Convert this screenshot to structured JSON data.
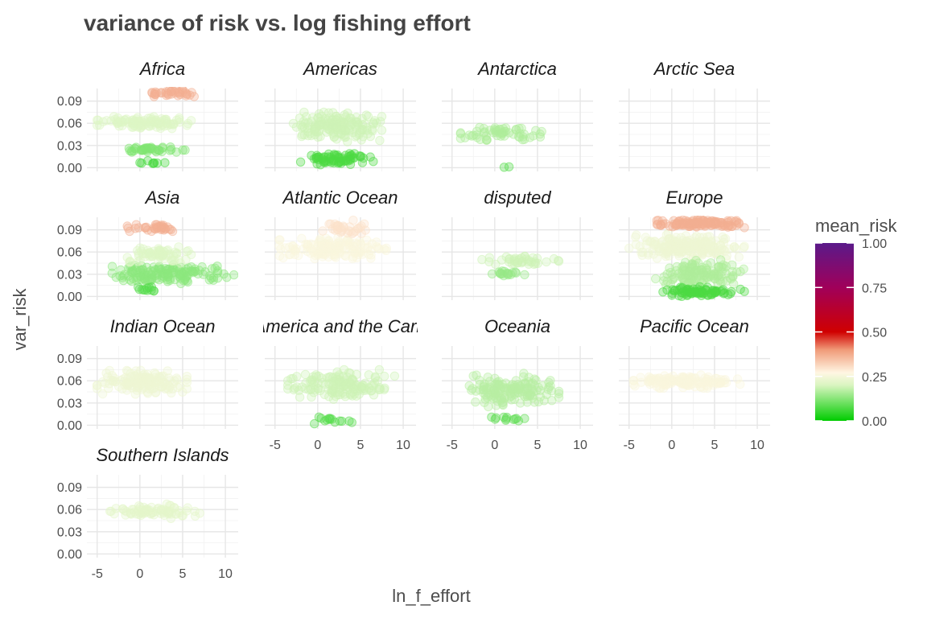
{
  "chart_data": {
    "type": "scatter",
    "title": "variance of risk vs. log fishing effort",
    "xlabel": "ln_f_effort",
    "ylabel": "var_risk",
    "xlim": [
      -6.2,
      11.5
    ],
    "ylim": [
      -0.005,
      0.107
    ],
    "x_ticks": [
      -5,
      0,
      5,
      10
    ],
    "y_ticks": [
      0.0,
      0.03,
      0.06,
      0.09
    ],
    "x_tick_labels": [
      "-5",
      "0",
      "5",
      "10"
    ],
    "y_tick_labels": [
      "0.00",
      "0.03",
      "0.06",
      "0.09"
    ],
    "grid": true,
    "legend": {
      "title": "mean_risk",
      "position": "right",
      "range": [
        0,
        1
      ],
      "breaks": [
        0.0,
        0.25,
        0.5,
        0.75,
        1.0
      ],
      "break_labels": [
        "0.00",
        "0.25",
        "0.50",
        "0.75",
        "1.00"
      ],
      "colors": [
        {
          "at": 0.0,
          "color": "#00CC00"
        },
        {
          "at": 0.2,
          "color": "#D9F5C0"
        },
        {
          "at": 0.27,
          "color": "#FFF6E3"
        },
        {
          "at": 0.4,
          "color": "#F09A78"
        },
        {
          "at": 0.5,
          "color": "#D00000"
        },
        {
          "at": 0.75,
          "color": "#A0005A"
        },
        {
          "at": 1.0,
          "color": "#5A1A8A"
        }
      ]
    },
    "facets": [
      {
        "name": "Africa",
        "clusters": [
          {
            "x": [
              -5,
              6
            ],
            "y": [
              0.053,
              0.069
            ],
            "risk": 0.21,
            "n": 110
          },
          {
            "x": [
              -0.3,
              7.5
            ],
            "y": [
              0.096,
              0.106
            ],
            "risk": 0.37,
            "n": 38
          },
          {
            "x": [
              -2,
              5.5
            ],
            "y": [
              0.02,
              0.028
            ],
            "risk": 0.12,
            "n": 40
          },
          {
            "x": [
              0,
              4
            ],
            "y": [
              0.003,
              0.01
            ],
            "risk": 0.06,
            "n": 8
          }
        ]
      },
      {
        "name": "Americas",
        "clusters": [
          {
            "x": [
              -3.5,
              7.5
            ],
            "y": [
              0.035,
              0.075
            ],
            "risk": 0.19,
            "n": 170
          },
          {
            "x": [
              -2,
              6.5
            ],
            "y": [
              0.004,
              0.02
            ],
            "risk": 0.07,
            "n": 70
          }
        ]
      },
      {
        "name": "Antarctica",
        "clusters": [
          {
            "x": [
              -4,
              5.5
            ],
            "y": [
              0.035,
              0.058
            ],
            "risk": 0.16,
            "n": 60
          },
          {
            "x": [
              0,
              2.5
            ],
            "y": [
              0.0,
              0.002
            ],
            "risk": 0.08,
            "n": 2
          }
        ]
      },
      {
        "name": "Arctic Sea",
        "clusters": []
      },
      {
        "name": "Asia",
        "clusters": [
          {
            "x": [
              -4,
              11
            ],
            "y": [
              0.015,
              0.045
            ],
            "risk": 0.13,
            "n": 150
          },
          {
            "x": [
              -2,
              6
            ],
            "y": [
              0.045,
              0.07
            ],
            "risk": 0.21,
            "n": 70
          },
          {
            "x": [
              -2,
              5.5
            ],
            "y": [
              0.088,
              0.097
            ],
            "risk": 0.37,
            "n": 35
          },
          {
            "x": [
              -1,
              3.5
            ],
            "y": [
              0.005,
              0.015
            ],
            "risk": 0.08,
            "n": 12
          }
        ]
      },
      {
        "name": "Atlantic Ocean",
        "clusters": [
          {
            "x": [
              -4.5,
              8.5
            ],
            "y": [
              0.05,
              0.08
            ],
            "risk": 0.26,
            "n": 150
          },
          {
            "x": [
              -0.5,
              6
            ],
            "y": [
              0.08,
              0.103
            ],
            "risk": 0.3,
            "n": 35
          }
        ]
      },
      {
        "name": "disputed",
        "clusters": [
          {
            "x": [
              -1.5,
              7.5
            ],
            "y": [
              0.042,
              0.055
            ],
            "risk": 0.19,
            "n": 40
          },
          {
            "x": [
              -1.5,
              3.5
            ],
            "y": [
              0.027,
              0.035
            ],
            "risk": 0.14,
            "n": 18
          }
        ]
      },
      {
        "name": "Europe",
        "clusters": [
          {
            "x": [
              -5,
              8.5
            ],
            "y": [
              0.05,
              0.085
            ],
            "risk": 0.24,
            "n": 190
          },
          {
            "x": [
              -2,
              8.5
            ],
            "y": [
              0.013,
              0.05
            ],
            "risk": 0.16,
            "n": 130
          },
          {
            "x": [
              -2,
              8.5
            ],
            "y": [
              0.0,
              0.013
            ],
            "risk": 0.07,
            "n": 80
          },
          {
            "x": [
              -2,
              8.5
            ],
            "y": [
              0.093,
              0.105
            ],
            "risk": 0.37,
            "n": 130
          }
        ]
      },
      {
        "name": "Indian Ocean",
        "clusters": [
          {
            "x": [
              -5,
              5.5
            ],
            "y": [
              0.042,
              0.074
            ],
            "risk": 0.24,
            "n": 150
          }
        ]
      },
      {
        "name": "Latin America and the Caribbean",
        "clusters": [
          {
            "x": [
              -3.5,
              9
            ],
            "y": [
              0.035,
              0.075
            ],
            "risk": 0.19,
            "n": 150
          },
          {
            "x": [
              -1.5,
              4
            ],
            "y": [
              0.0,
              0.012
            ],
            "risk": 0.08,
            "n": 14
          }
        ]
      },
      {
        "name": "Oceania",
        "clusters": [
          {
            "x": [
              -3.5,
              7.5
            ],
            "y": [
              0.025,
              0.07
            ],
            "risk": 0.17,
            "n": 150
          },
          {
            "x": [
              -1.5,
              5
            ],
            "y": [
              0.005,
              0.015
            ],
            "risk": 0.09,
            "n": 12
          }
        ]
      },
      {
        "name": "Pacific Ocean",
        "clusters": [
          {
            "x": [
              -4.5,
              8
            ],
            "y": [
              0.05,
              0.068
            ],
            "risk": 0.26,
            "n": 140
          }
        ]
      },
      {
        "name": "Southern Islands",
        "clusters": [
          {
            "x": [
              -3.5,
              7
            ],
            "y": [
              0.048,
              0.068
            ],
            "risk": 0.22,
            "n": 80
          }
        ]
      }
    ]
  }
}
